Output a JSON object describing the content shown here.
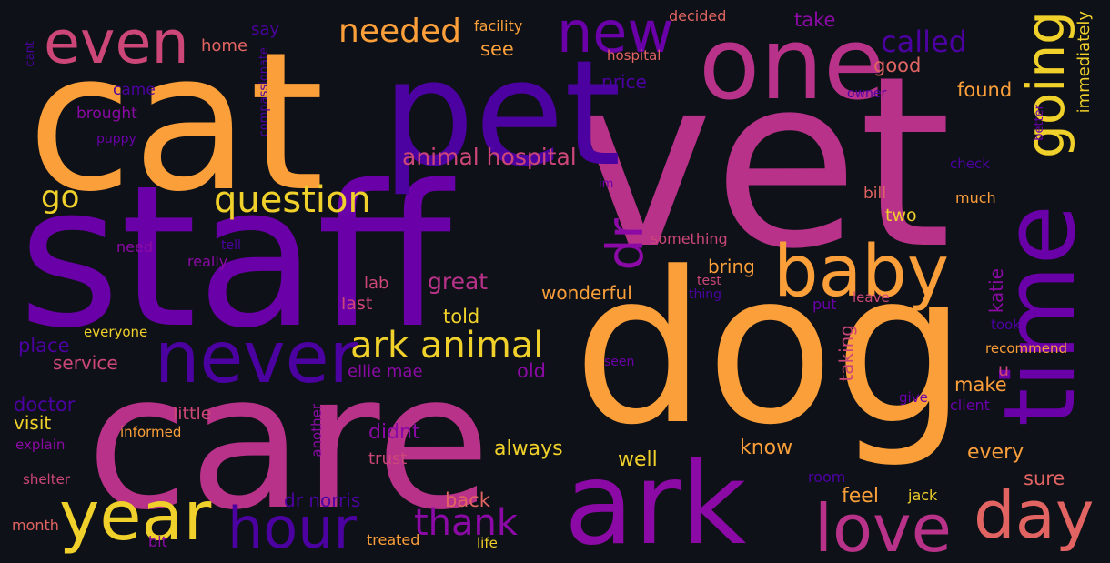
{
  "background": "#0e1117",
  "palette": {
    "orange": "#fb9f3a",
    "pink": "#b83289",
    "purple": "#6a00a8",
    "indigo": "#4c02a1",
    "violet": "#8b0aa5",
    "yellow": "#f0d02a",
    "salmon": "#e16462",
    "rose": "#cc4778"
  },
  "words": [
    {
      "text": "cat",
      "color": "#fb9f3a",
      "weight": 1.0
    },
    {
      "text": "vet",
      "color": "#b83289",
      "weight": 1.0
    },
    {
      "text": "staff",
      "color": "#6a00a8",
      "weight": 1.0
    },
    {
      "text": "dog",
      "color": "#fb9f3a",
      "weight": 0.95
    },
    {
      "text": "care",
      "color": "#b83289",
      "weight": 0.9
    },
    {
      "text": "pet",
      "color": "#4c02a1",
      "weight": 0.75
    },
    {
      "text": "ark",
      "color": "#8b0aa5",
      "weight": 0.7
    },
    {
      "text": "one",
      "color": "#b83289",
      "weight": 0.6
    },
    {
      "text": "time",
      "color": "#6a00a8",
      "weight": 0.55
    },
    {
      "text": "never",
      "color": "#4c02a1",
      "weight": 0.45
    },
    {
      "text": "year",
      "color": "#f0d02a",
      "weight": 0.45
    },
    {
      "text": "baby",
      "color": "#fb9f3a",
      "weight": 0.45
    },
    {
      "text": "love",
      "color": "#b83289",
      "weight": 0.4
    },
    {
      "text": "day",
      "color": "#e16462",
      "weight": 0.4
    },
    {
      "text": "hour",
      "color": "#4c02a1",
      "weight": 0.4
    },
    {
      "text": "even",
      "color": "#cc4778",
      "weight": 0.4
    },
    {
      "text": "new",
      "color": "#6a00a8",
      "weight": 0.4
    },
    {
      "text": "going",
      "color": "#f0d02a",
      "weight": 0.4
    },
    {
      "text": "dr",
      "color": "#8b0aa5",
      "weight": 0.3
    },
    {
      "text": "question",
      "color": "#f0d02a",
      "weight": 0.25
    },
    {
      "text": "ark animal",
      "color": "#f0d02a",
      "weight": 0.25
    },
    {
      "text": "thank",
      "color": "#8b0aa5",
      "weight": 0.25
    },
    {
      "text": "needed",
      "color": "#fb9f3a",
      "weight": 0.22
    },
    {
      "text": "called",
      "color": "#4c02a1",
      "weight": 0.22
    },
    {
      "text": "go",
      "color": "#f0d02a",
      "weight": 0.2
    },
    {
      "text": "animal hospital",
      "color": "#cc4778",
      "weight": 0.18
    },
    {
      "text": "great",
      "color": "#b83289",
      "weight": 0.16
    },
    {
      "text": "always",
      "color": "#f0d02a",
      "weight": 0.14
    },
    {
      "text": "didnt",
      "color": "#8b0aa5",
      "weight": 0.14
    },
    {
      "text": "place",
      "color": "#4c02a1",
      "weight": 0.12
    },
    {
      "text": "doctor",
      "color": "#4c02a1",
      "weight": 0.12
    },
    {
      "text": "service",
      "color": "#cc4778",
      "weight": 0.12
    },
    {
      "text": "visit",
      "color": "#f0d02a",
      "weight": 0.12
    },
    {
      "text": "know",
      "color": "#fb9f3a",
      "weight": 0.12
    },
    {
      "text": "every",
      "color": "#fb9f3a",
      "weight": 0.12
    },
    {
      "text": "well",
      "color": "#f0d02a",
      "weight": 0.12
    },
    {
      "text": "back",
      "color": "#e16462",
      "weight": 0.12
    },
    {
      "text": "feel",
      "color": "#fb9f3a",
      "weight": 0.12
    },
    {
      "text": "sure",
      "color": "#e16462",
      "weight": 0.11
    },
    {
      "text": "make",
      "color": "#fb9f3a",
      "weight": 0.11
    },
    {
      "text": "found",
      "color": "#fb9f3a",
      "weight": 0.11
    },
    {
      "text": "good",
      "color": "#e16462",
      "weight": 0.11
    },
    {
      "text": "take",
      "color": "#8b0aa5",
      "weight": 0.11
    },
    {
      "text": "see",
      "color": "#fb9f3a",
      "weight": 0.1
    },
    {
      "text": "price",
      "color": "#4c02a1",
      "weight": 0.1
    },
    {
      "text": "told",
      "color": "#f0d02a",
      "weight": 0.1
    },
    {
      "text": "old",
      "color": "#8b0aa5",
      "weight": 0.1
    },
    {
      "text": "bring",
      "color": "#fb9f3a",
      "weight": 0.1
    },
    {
      "text": "wonderful",
      "color": "#fb9f3a",
      "weight": 0.1
    },
    {
      "text": "two",
      "color": "#f0d02a",
      "weight": 0.1
    },
    {
      "text": "lab",
      "color": "#cc4778",
      "weight": 0.09
    },
    {
      "text": "last",
      "color": "#cc4778",
      "weight": 0.09
    },
    {
      "text": "little",
      "color": "#cc4778",
      "weight": 0.09
    },
    {
      "text": "trust",
      "color": "#cc4778",
      "weight": 0.09
    },
    {
      "text": "taking",
      "color": "#cc4778",
      "weight": 0.09
    },
    {
      "text": "katie",
      "color": "#8b0aa5",
      "weight": 0.09
    },
    {
      "text": "dr norris",
      "color": "#4c02a1",
      "weight": 0.09
    },
    {
      "text": "ellie mae",
      "color": "#8b0aa5",
      "weight": 0.08
    },
    {
      "text": "home",
      "color": "#e16462",
      "weight": 0.08
    },
    {
      "text": "say",
      "color": "#4c02a1",
      "weight": 0.08
    },
    {
      "text": "came",
      "color": "#4c02a1",
      "weight": 0.08
    },
    {
      "text": "brought",
      "color": "#8b0aa5",
      "weight": 0.08
    },
    {
      "text": "bill",
      "color": "#e16462",
      "weight": 0.08
    },
    {
      "text": "much",
      "color": "#fb9f3a",
      "weight": 0.08
    },
    {
      "text": "immediately",
      "color": "#f0d02a",
      "weight": 0.08
    },
    {
      "text": "facility",
      "color": "#fb9f3a",
      "weight": 0.07
    },
    {
      "text": "decided",
      "color": "#e16462",
      "weight": 0.07
    },
    {
      "text": "hospital",
      "color": "#e16462",
      "weight": 0.07
    },
    {
      "text": "puppy",
      "color": "#6a00a8",
      "weight": 0.07
    },
    {
      "text": "need",
      "color": "#8b0aa5",
      "weight": 0.07
    },
    {
      "text": "really",
      "color": "#8b0aa5",
      "weight": 0.07
    },
    {
      "text": "tell",
      "color": "#4c02a1",
      "weight": 0.07
    },
    {
      "text": "something",
      "color": "#cc4778",
      "weight": 0.07
    },
    {
      "text": "everyone",
      "color": "#f0d02a",
      "weight": 0.07
    },
    {
      "text": "informed",
      "color": "#fb9f3a",
      "weight": 0.07
    },
    {
      "text": "explain",
      "color": "#8b0aa5",
      "weight": 0.07
    },
    {
      "text": "shelter",
      "color": "#cc4778",
      "weight": 0.07
    },
    {
      "text": "month",
      "color": "#e16462",
      "weight": 0.07
    },
    {
      "text": "bit",
      "color": "#8b0aa5",
      "weight": 0.07
    },
    {
      "text": "treated",
      "color": "#fb9f3a",
      "weight": 0.07
    },
    {
      "text": "life",
      "color": "#f0d02a",
      "weight": 0.07
    },
    {
      "text": "another",
      "color": "#8b0aa5",
      "weight": 0.07
    },
    {
      "text": "room",
      "color": "#4c02a1",
      "weight": 0.07
    },
    {
      "text": "jack",
      "color": "#f0d02a",
      "weight": 0.07
    },
    {
      "text": "test",
      "color": "#cc4778",
      "weight": 0.06
    },
    {
      "text": "thing",
      "color": "#4c02a1",
      "weight": 0.06
    },
    {
      "text": "put",
      "color": "#6a00a8",
      "weight": 0.07
    },
    {
      "text": "leave",
      "color": "#cc4778",
      "weight": 0.07
    },
    {
      "text": "took",
      "color": "#4c02a1",
      "weight": 0.07
    },
    {
      "text": "recommend",
      "color": "#fb9f3a",
      "weight": 0.07
    },
    {
      "text": "u",
      "color": "#cc4778",
      "weight": 0.09
    },
    {
      "text": "give",
      "color": "#6a00a8",
      "weight": 0.07
    },
    {
      "text": "client",
      "color": "#6a00a8",
      "weight": 0.07
    },
    {
      "text": "seen",
      "color": "#6a00a8",
      "weight": 0.06
    },
    {
      "text": "owner",
      "color": "#4c02a1",
      "weight": 0.06
    },
    {
      "text": "better",
      "color": "#6a00a8",
      "weight": 0.06
    },
    {
      "text": "check",
      "color": "#4c02a1",
      "weight": 0.06
    },
    {
      "text": "im",
      "color": "#6a00a8",
      "weight": 0.05
    },
    {
      "text": "cant",
      "color": "#4c02a1",
      "weight": 0.06
    },
    {
      "text": "compassionate",
      "color": "#4c02a1",
      "weight": 0.06
    }
  ]
}
